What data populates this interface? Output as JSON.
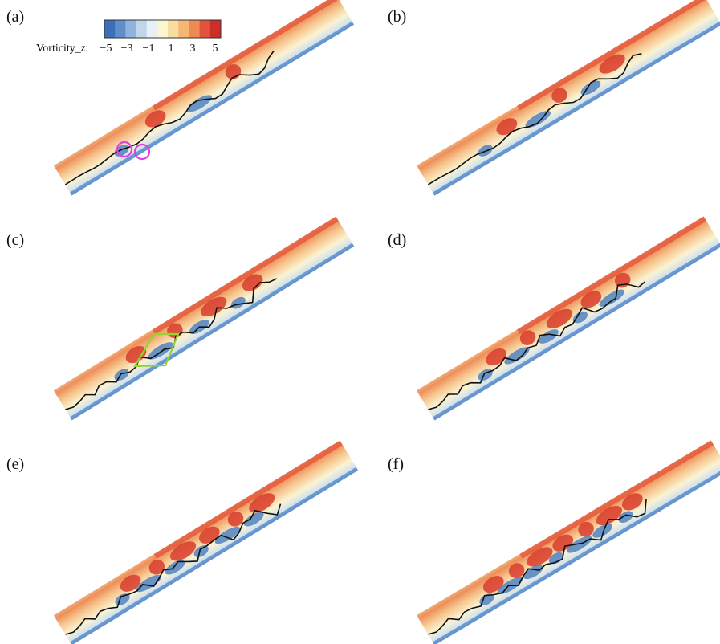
{
  "figure": {
    "colorbar": {
      "label_text": "Vorticity_",
      "label_var": "z",
      "label_colon": ":",
      "ticks": [
        "−5",
        "−3",
        "−1",
        "1",
        "3",
        "5"
      ],
      "range": [
        -5,
        5
      ],
      "colors": [
        "#3b6fb6",
        "#5f8fcb",
        "#8fb3dc",
        "#c2d6ea",
        "#e7f0f5",
        "#fbf6d0",
        "#f9dca0",
        "#f5b774",
        "#ee8a52",
        "#e0553a",
        "#cc2f2a"
      ]
    },
    "panels": [
      {
        "id": "a",
        "label": "(a)"
      },
      {
        "id": "b",
        "label": "(b)"
      },
      {
        "id": "c",
        "label": "(c)"
      },
      {
        "id": "d",
        "label": "(d)"
      },
      {
        "id": "e",
        "label": "(e)"
      },
      {
        "id": "f",
        "label": "(f)"
      }
    ],
    "highlight_colors": {
      "circles": "#e040e0",
      "box": "#8fd62e"
    }
  }
}
